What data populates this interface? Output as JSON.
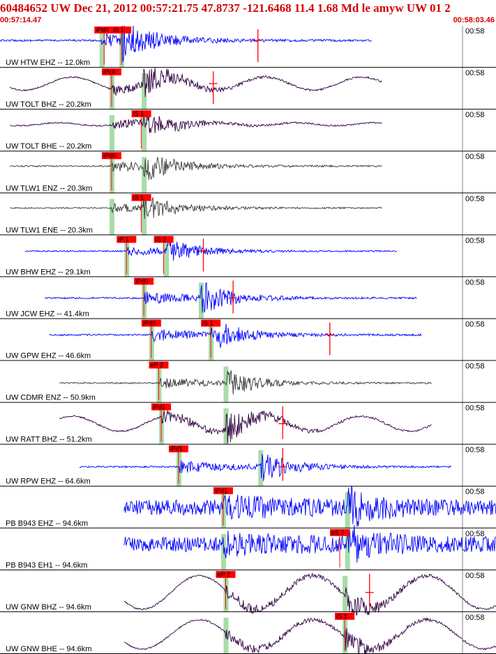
{
  "header": {
    "title": "60484652 UW Dec 21, 2012 00:57:21.75    47.8737 -121.6468 11.4 1.68 Md le amyw UW 01    2",
    "start_time": "00:57:14.47",
    "end_time": "00:58:03.46"
  },
  "colors": {
    "header_text": "#d40000",
    "pick_box": "#ff0000",
    "pick_window": "#a8dca8",
    "blue_trace": "#0000ff",
    "purple_trace": "#300040",
    "gray_trace": "#383838",
    "tick_line": "#808080"
  },
  "chart_data": {
    "type": "line",
    "title": "60484652 UW Dec 21, 2012 00:57:21.75    47.8737 -121.6468 11.4 1.68 Md le amyw UW 01    2",
    "xlabel": "",
    "ylabel": "",
    "time_range": [
      "00:57:14.47",
      "00:58:03.46"
    ],
    "minute_tick_label": "00:58",
    "grid": false,
    "traces": [
      {
        "name": "UW HTW EHZ -- 12.0km",
        "color": "blue",
        "start": 0,
        "end": 0.75,
        "base": 0.25,
        "onset": 0.205,
        "amp": 0.45,
        "picks": [
          {
            "label": "iPd0",
            "t": 0.21
          },
          {
            "label": "iS 1",
            "t": 0.245
          }
        ],
        "s_t": 0.245,
        "red_marks": [
          0.52
        ],
        "wave": "noise"
      },
      {
        "name": "UW TOLT BHZ -- 20.2km",
        "color": "purple",
        "start": 0.02,
        "end": 0.77,
        "base": 0.3,
        "onset": 0.225,
        "amp": 0.35,
        "picks": [
          {
            "label": "iPc0",
            "t": 0.225
          }
        ],
        "s_t": 0.29,
        "red_marks": [
          0.43
        ],
        "wave": "swell"
      },
      {
        "name": "UW TOLT BHE -- 20.2km",
        "color": "purple",
        "start": 0.02,
        "end": 0.77,
        "base": 0.25,
        "onset": 0.225,
        "amp": 0.3,
        "picks": [
          {
            "label": "iS 1",
            "t": 0.285
          }
        ],
        "s_t": 0.29,
        "red_marks": [],
        "wave": "swell_small"
      },
      {
        "name": "UW TLW1 ENZ -- 20.3km",
        "color": "gray",
        "start": 0.02,
        "end": 0.77,
        "base": 0.25,
        "onset": 0.225,
        "amp": 0.35,
        "picks": [
          {
            "label": "iPd0",
            "t": 0.225
          }
        ],
        "s_t": 0.29,
        "red_marks": [],
        "wave": "noise"
      },
      {
        "name": "UW TLW1 ENE -- 20.3km",
        "color": "gray",
        "start": 0.02,
        "end": 0.77,
        "base": 0.25,
        "onset": 0.225,
        "amp": 0.3,
        "picks": [
          {
            "label": "iS 1",
            "t": 0.285
          }
        ],
        "s_t": 0.29,
        "red_marks": [],
        "wave": "noise"
      },
      {
        "name": "UW BHW EHZ -- 29.1km",
        "color": "blue",
        "start": 0.05,
        "end": 0.8,
        "base": 0.3,
        "onset": 0.255,
        "amp": 0.3,
        "picks": [
          {
            "label": "iP 1",
            "t": 0.255
          },
          {
            "label": "iS 2",
            "t": 0.33
          }
        ],
        "s_t": 0.335,
        "red_marks": [
          0.41
        ],
        "wave": "noise"
      },
      {
        "name": "UW JCW EHZ -- 41.4km",
        "color": "blue",
        "start": 0.09,
        "end": 0.84,
        "base": 0.5,
        "onset": 0.29,
        "amp": 0.4,
        "picks": [
          {
            "label": "iPd0",
            "t": 0.29
          }
        ],
        "s_t": 0.405,
        "red_marks": [
          0.47
        ],
        "wave": "noise"
      },
      {
        "name": "UW GPW EHZ -- 46.6km",
        "color": "blue",
        "start": 0.1,
        "end": 0.85,
        "base": 0.3,
        "onset": 0.305,
        "amp": 0.4,
        "picks": [
          {
            "label": "iPd0",
            "t": 0.305
          },
          {
            "label": "iS 1",
            "t": 0.425
          }
        ],
        "s_t": 0.425,
        "red_marks": [
          0.665
        ],
        "wave": "noise"
      },
      {
        "name": "UW CDMR ENZ -- 50.9km",
        "color": "gray",
        "start": 0.12,
        "end": 0.87,
        "base": 0.55,
        "onset": 0.32,
        "amp": 0.35,
        "picks": [
          {
            "label": "eP 2",
            "t": 0.32
          }
        ],
        "s_t": 0.455,
        "red_marks": [],
        "wave": "noise"
      },
      {
        "name": "UW RATT BHZ -- 51.2km",
        "color": "purple",
        "start": 0.12,
        "end": 0.87,
        "base": 0.5,
        "onset": 0.325,
        "amp": 0.4,
        "picks": [
          {
            "label": "iPd1",
            "t": 0.325
          }
        ],
        "s_t": 0.455,
        "red_marks": [
          0.57
        ],
        "wave": "swell"
      },
      {
        "name": "UW RPW EHZ -- 64.6km",
        "color": "blue",
        "start": 0.16,
        "end": 0.91,
        "base": 0.55,
        "onset": 0.36,
        "amp": 0.4,
        "picks": [
          {
            "label": "iPd1",
            "t": 0.36
          }
        ],
        "s_t": 0.525,
        "red_marks": [
          0.57
        ],
        "wave": "noise"
      },
      {
        "name": "PB B943 EHZ -- 94.6km",
        "color": "blue",
        "start": 0.25,
        "end": 1.0,
        "base": 0.5,
        "onset": 0.45,
        "amp": 0.45,
        "picks": [
          {
            "label": "iPd1",
            "t": 0.45
          }
        ],
        "s_t": 0.7,
        "red_marks": [],
        "wave": "noisy_bg"
      },
      {
        "name": "PB B943 EH1 -- 94.6km",
        "color": "blue",
        "start": 0.25,
        "end": 1.0,
        "base": 0.3,
        "onset": 0.45,
        "amp": 0.45,
        "picks": [
          {
            "label": "eS 2",
            "t": 0.685
          }
        ],
        "s_t": 0.7,
        "red_marks": [],
        "wave": "noisy_bg"
      },
      {
        "name": "UW GNW BHZ -- 94.6km",
        "color": "purple",
        "start": 0.25,
        "end": 1.0,
        "base": 0.55,
        "onset": 0.455,
        "amp": 0.4,
        "picks": [
          {
            "label": "eP 2",
            "t": 0.455
          }
        ],
        "s_t": 0.695,
        "red_marks": [
          0.745
        ],
        "wave": "big_swell"
      },
      {
        "name": "UW GNW BHE -- 94.6km",
        "color": "purple",
        "start": 0.25,
        "end": 1.0,
        "base": 0.55,
        "onset": 0.455,
        "amp": 0.35,
        "picks": [
          {
            "label": "iS 1",
            "t": 0.695
          }
        ],
        "s_t": 0.695,
        "red_marks": [],
        "wave": "big_swell"
      }
    ]
  }
}
